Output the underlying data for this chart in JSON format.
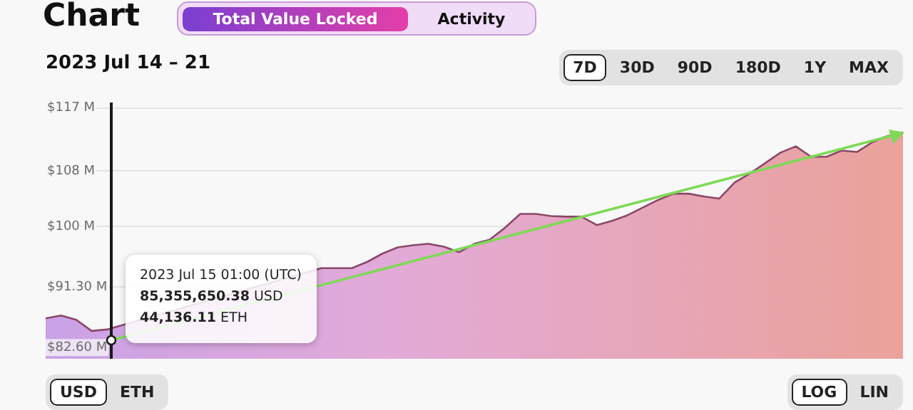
{
  "chart_data": {
    "type": "area",
    "title": "Chart",
    "subtitle": "2023 Jul 14 – 21",
    "annotations": [
      "Total Value Locked",
      "Activity",
      "7D",
      "30D",
      "90D",
      "180D",
      "1Y",
      "MAX",
      "USD",
      "ETH",
      "LOG",
      "LIN",
      "2023 Jul 15 01:00 (UTC)",
      "85,355,650.38 USD",
      "44,136.11 ETH"
    ],
    "categories": [
      null,
      null,
      null,
      null,
      null,
      null,
      null,
      null,
      null,
      null,
      null,
      null,
      null,
      null,
      null,
      null,
      null,
      null,
      null,
      null,
      null,
      null,
      null,
      null,
      null,
      null,
      null,
      null,
      null,
      null,
      null,
      null,
      null,
      null,
      null,
      null,
      null,
      null,
      null,
      null,
      null,
      null,
      null,
      null,
      null,
      null,
      null,
      null,
      null,
      null,
      null,
      null,
      null,
      null,
      null,
      null,
      null
    ],
    "ylim": [
      81,
      118
    ],
    "yticks": [
      {
        "value": 82.6,
        "label": "$82.60 M"
      },
      {
        "value": 91.3,
        "label": "$91.30 M"
      },
      {
        "value": 100,
        "label": "$100 M"
      },
      {
        "value": 108,
        "label": "$108 M"
      },
      {
        "value": 117,
        "label": "$117 M"
      }
    ],
    "tick_labels": "y",
    "grid": "y",
    "series": [
      {
        "color": "#8a4868",
        "values": [
          86.8,
          87.2,
          86.6,
          85.0,
          85.2,
          null,
          null,
          null,
          null,
          null,
          null,
          null,
          null,
          null,
          null,
          null,
          null,
          null,
          94.0,
          94.0,
          94.0,
          94.9,
          96.1,
          97.0,
          97.3,
          97.5,
          97.1,
          96.3,
          97.5,
          98.1,
          99.8,
          101.8,
          101.8,
          101.5,
          101.4,
          101.4,
          100.2,
          100.8,
          101.6,
          102.7,
          103.8,
          104.7,
          104.7,
          104.3,
          104.0,
          106.3,
          107.6,
          109.1,
          110.6,
          111.5,
          110.0,
          110.0,
          110.9,
          110.7,
          112.1,
          113.0,
          113.5
        ]
      }
    ]
  }
}
